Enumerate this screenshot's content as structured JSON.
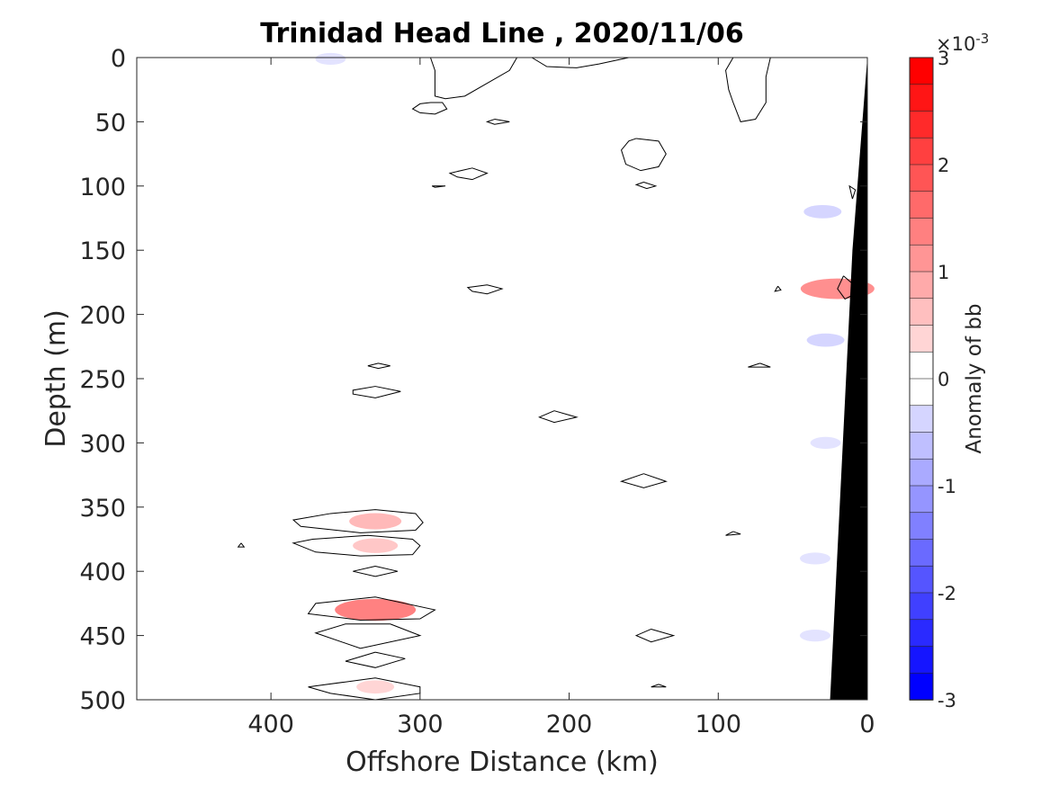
{
  "chart_data": {
    "type": "contour",
    "title": "Trinidad Head Line , 2020/11/06",
    "xlabel": "Offshore Distance (km)",
    "ylabel": "Depth (m)",
    "xlim": [
      490,
      0
    ],
    "ylim": [
      0,
      500
    ],
    "x_reversed": true,
    "y_reversed": true,
    "x_ticks": [
      400,
      300,
      200,
      100,
      0
    ],
    "y_ticks": [
      0,
      50,
      100,
      150,
      200,
      250,
      300,
      350,
      400,
      450,
      500
    ],
    "colorbar": {
      "label": "Anomaly of bb",
      "multiplier": "×10-3",
      "exponent_base": "×10",
      "exponent": "-3",
      "range": [
        -3,
        3
      ],
      "ticks": [
        3,
        2,
        1,
        0,
        -1,
        -2,
        -3
      ],
      "levels": 24,
      "low_color": "#0000ff",
      "mid_color": "#ffffff",
      "high_color": "#ff0000"
    },
    "seafloor": {
      "color": "#000000",
      "points": [
        [
          0,
          0
        ],
        [
          0,
          500
        ],
        [
          25,
          500
        ],
        [
          10,
          150
        ],
        [
          0,
          0
        ]
      ]
    },
    "contour_lines": [
      {
        "level": 0,
        "points": [
          [
            293,
            0
          ],
          [
            290,
            10
          ],
          [
            290,
            30
          ],
          [
            283,
            32
          ],
          [
            270,
            30
          ],
          [
            255,
            20
          ],
          [
            240,
            10
          ],
          [
            235,
            0
          ]
        ]
      },
      {
        "level": 0,
        "points": [
          [
            225,
            0
          ],
          [
            215,
            7
          ],
          [
            195,
            8
          ],
          [
            180,
            5
          ],
          [
            160,
            0
          ]
        ]
      },
      {
        "level": 0,
        "points": [
          [
            90,
            0
          ],
          [
            95,
            10
          ],
          [
            93,
            25
          ],
          [
            90,
            35
          ],
          [
            85,
            50
          ],
          [
            75,
            48
          ],
          [
            68,
            35
          ],
          [
            68,
            15
          ],
          [
            65,
            0
          ]
        ]
      },
      {
        "level": 0,
        "points": [
          [
            293,
            35
          ],
          [
            285,
            35
          ],
          [
            282,
            40
          ],
          [
            290,
            44
          ],
          [
            300,
            43
          ],
          [
            305,
            40
          ],
          [
            300,
            36
          ],
          [
            293,
            35
          ]
        ]
      },
      {
        "level": 0,
        "points": [
          [
            250,
            48
          ],
          [
            240,
            50
          ],
          [
            250,
            52
          ],
          [
            255,
            50
          ],
          [
            250,
            48
          ]
        ]
      },
      {
        "level": 0,
        "points": [
          [
            155,
            63
          ],
          [
            140,
            65
          ],
          [
            135,
            75
          ],
          [
            140,
            85
          ],
          [
            152,
            88
          ],
          [
            162,
            83
          ],
          [
            165,
            72
          ],
          [
            160,
            65
          ],
          [
            155,
            63
          ]
        ]
      },
      {
        "level": 0,
        "points": [
          [
            265,
            86
          ],
          [
            255,
            90
          ],
          [
            265,
            95
          ],
          [
            275,
            93
          ],
          [
            280,
            90
          ],
          [
            265,
            86
          ]
        ]
      },
      {
        "level": 0,
        "points": [
          [
            292,
            100
          ],
          [
            283,
            100
          ],
          [
            290,
            101
          ],
          [
            292,
            100
          ]
        ]
      },
      {
        "level": 0,
        "points": [
          [
            150,
            97
          ],
          [
            142,
            100
          ],
          [
            148,
            102
          ],
          [
            155,
            99
          ],
          [
            150,
            97
          ]
        ]
      },
      {
        "level": 0,
        "points": [
          [
            10,
            110
          ],
          [
            12,
            100
          ],
          [
            8,
            103
          ],
          [
            10,
            110
          ]
        ]
      },
      {
        "level": 0,
        "points": [
          [
            255,
            177
          ],
          [
            245,
            180
          ],
          [
            255,
            184
          ],
          [
            265,
            182
          ],
          [
            268,
            179
          ],
          [
            255,
            177
          ]
        ]
      },
      {
        "level": 0,
        "points": [
          [
            60,
            178
          ],
          [
            58,
            181
          ],
          [
            62,
            182
          ],
          [
            60,
            178
          ]
        ]
      },
      {
        "level": 0,
        "points": [
          [
            16,
            170
          ],
          [
            20,
            180
          ],
          [
            15,
            188
          ],
          [
            10,
            185
          ],
          [
            8,
            178
          ],
          [
            16,
            170
          ]
        ]
      },
      {
        "level": 0,
        "points": [
          [
            328,
            238
          ],
          [
            335,
            240
          ],
          [
            328,
            242
          ],
          [
            320,
            240
          ],
          [
            328,
            238
          ]
        ]
      },
      {
        "level": 0,
        "points": [
          [
            330,
            256
          ],
          [
            313,
            260
          ],
          [
            330,
            265
          ],
          [
            345,
            262
          ],
          [
            345,
            259
          ],
          [
            330,
            256
          ]
        ]
      },
      {
        "level": 0,
        "points": [
          [
            210,
            275
          ],
          [
            195,
            280
          ],
          [
            210,
            284
          ],
          [
            220,
            280
          ],
          [
            210,
            275
          ]
        ]
      },
      {
        "level": 0,
        "points": [
          [
            72,
            238
          ],
          [
            65,
            241
          ],
          [
            80,
            241
          ],
          [
            72,
            238
          ]
        ]
      },
      {
        "level": 0,
        "points": [
          [
            150,
            324
          ],
          [
            135,
            330
          ],
          [
            150,
            335
          ],
          [
            165,
            330
          ],
          [
            150,
            324
          ]
        ]
      },
      {
        "level": 0,
        "points": [
          [
            90,
            369
          ],
          [
            85,
            371
          ],
          [
            95,
            372
          ],
          [
            90,
            369
          ]
        ]
      },
      {
        "level": 0,
        "points": [
          [
            330,
            352
          ],
          [
            303,
            355
          ],
          [
            298,
            362
          ],
          [
            303,
            368
          ],
          [
            340,
            370
          ],
          [
            380,
            365
          ],
          [
            385,
            360
          ],
          [
            360,
            355
          ],
          [
            330,
            352
          ]
        ]
      },
      {
        "level": 0,
        "points": [
          [
            335,
            372
          ],
          [
            305,
            375
          ],
          [
            300,
            380
          ],
          [
            305,
            387
          ],
          [
            340,
            388
          ],
          [
            370,
            385
          ],
          [
            385,
            378
          ],
          [
            372,
            375
          ],
          [
            335,
            372
          ]
        ]
      },
      {
        "level": 0,
        "points": [
          [
            420,
            378
          ],
          [
            418,
            381
          ],
          [
            422,
            381
          ],
          [
            420,
            378
          ]
        ]
      },
      {
        "level": 0,
        "points": [
          [
            330,
            396
          ],
          [
            315,
            400
          ],
          [
            330,
            404
          ],
          [
            345,
            400
          ],
          [
            330,
            396
          ]
        ]
      },
      {
        "level": 0,
        "points": [
          [
            330,
            420
          ],
          [
            290,
            430
          ],
          [
            300,
            437
          ],
          [
            340,
            438
          ],
          [
            375,
            433
          ],
          [
            370,
            425
          ],
          [
            330,
            420
          ]
        ]
      },
      {
        "level": 0,
        "points": [
          [
            320,
            441
          ],
          [
            300,
            450
          ],
          [
            340,
            460
          ],
          [
            370,
            448
          ],
          [
            350,
            441
          ],
          [
            320,
            441
          ]
        ]
      },
      {
        "level": 0,
        "points": [
          [
            330,
            463
          ],
          [
            310,
            468
          ],
          [
            330,
            475
          ],
          [
            350,
            470
          ],
          [
            330,
            463
          ]
        ]
      },
      {
        "level": 0,
        "points": [
          [
            145,
            445
          ],
          [
            130,
            450
          ],
          [
            145,
            455
          ],
          [
            155,
            450
          ],
          [
            145,
            445
          ]
        ]
      },
      {
        "level": 0,
        "points": [
          [
            140,
            488
          ],
          [
            135,
            490
          ],
          [
            145,
            490
          ],
          [
            140,
            488
          ]
        ]
      },
      {
        "level": 0,
        "points": [
          [
            330,
            483
          ],
          [
            300,
            490
          ],
          [
            300,
            495
          ],
          [
            330,
            500
          ],
          [
            360,
            495
          ],
          [
            375,
            490
          ],
          [
            330,
            483
          ]
        ]
      }
    ],
    "anomaly_patches": [
      {
        "x": 330,
        "depth": 361,
        "value": 0.5
      },
      {
        "x": 330,
        "depth": 380,
        "value": 0.4
      },
      {
        "x": 330,
        "depth": 430,
        "value": 0.9
      },
      {
        "x": 330,
        "depth": 490,
        "value": 0.3
      },
      {
        "x": 20,
        "depth": 180,
        "value": 0.8
      },
      {
        "x": 360,
        "depth": 1,
        "value": -0.2
      },
      {
        "x": 30,
        "depth": 120,
        "value": -0.3
      },
      {
        "x": 28,
        "depth": 220,
        "value": -0.3
      },
      {
        "x": 28,
        "depth": 300,
        "value": -0.2
      },
      {
        "x": 35,
        "depth": 390,
        "value": -0.2
      },
      {
        "x": 35,
        "depth": 450,
        "value": -0.2
      }
    ]
  }
}
